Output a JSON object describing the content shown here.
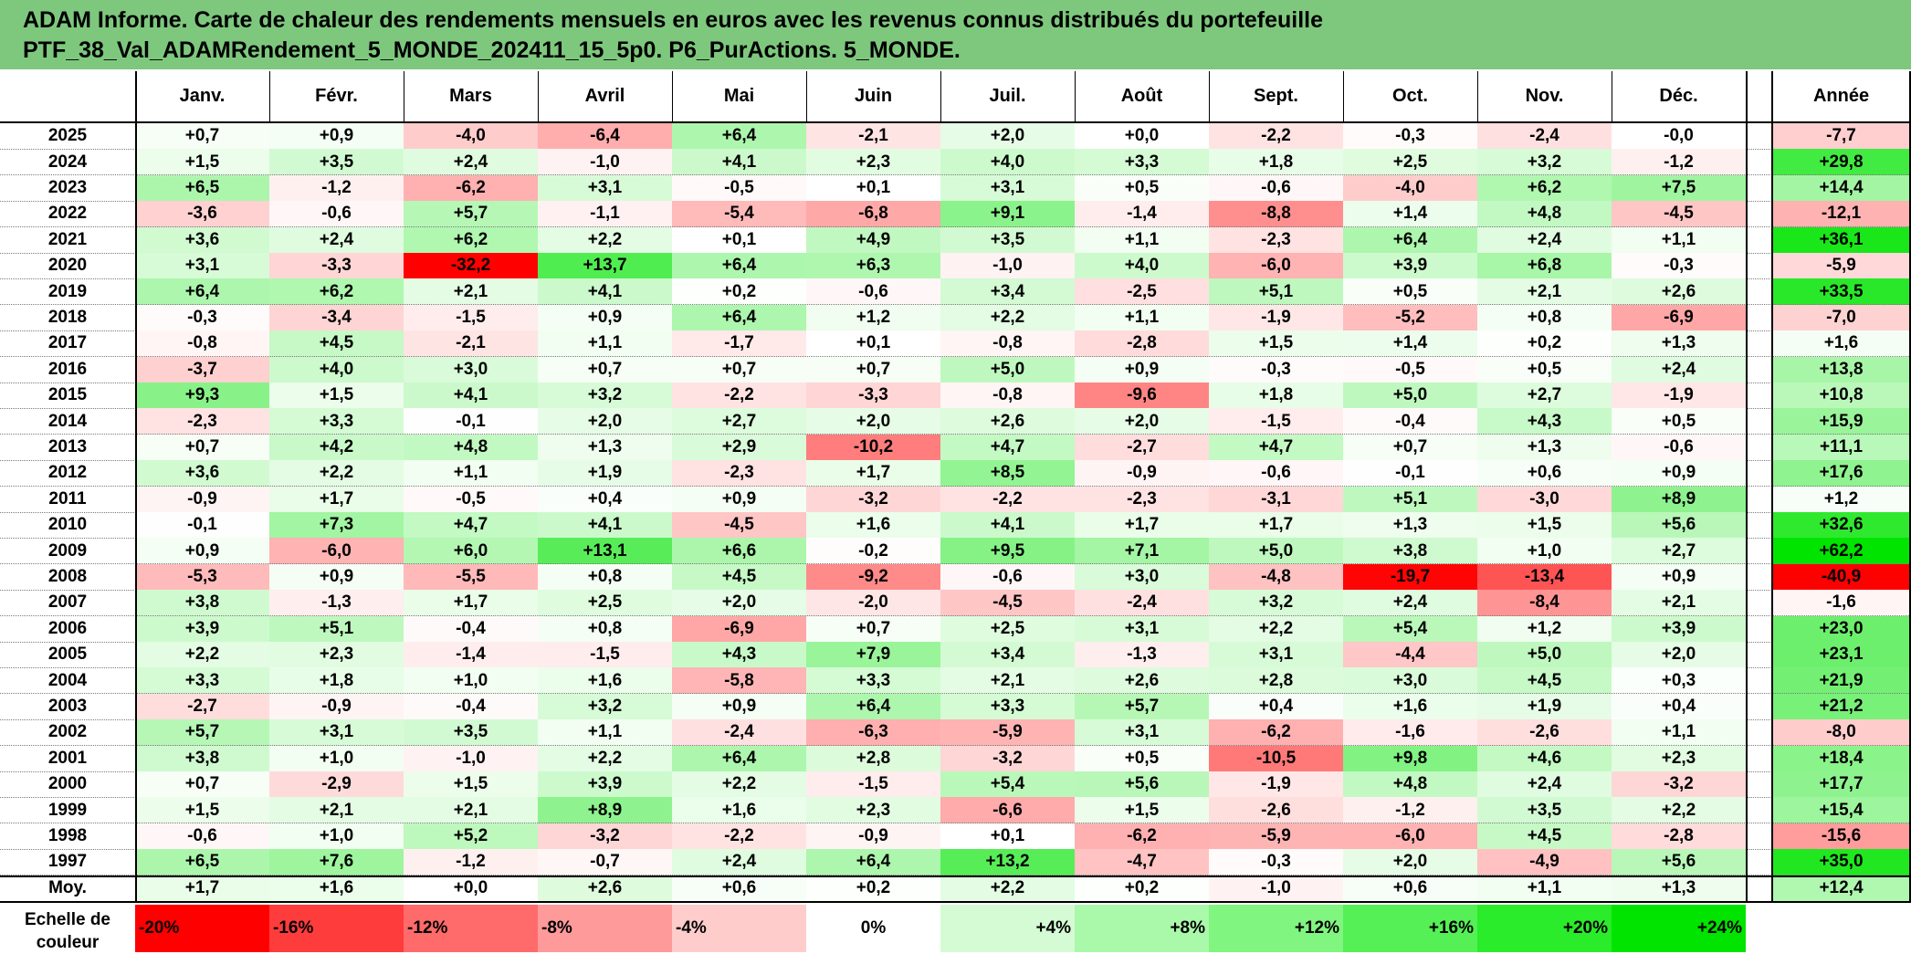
{
  "title": {
    "line1": "ADAM Informe. Carte de chaleur des rendements mensuels en euros avec les revenus connus distribués du portefeuille",
    "line2": "PTF_38_Val_ADAMRendement_5_MONDE_202411_15_5p0. P6_PurActions. 5_MONDE."
  },
  "chart_data": {
    "type": "heatmap",
    "columns": [
      "Janv.",
      "Févr.",
      "Mars",
      "Avril",
      "Mai",
      "Juin",
      "Juil.",
      "Août",
      "Sept.",
      "Oct.",
      "Nov.",
      "Déc."
    ],
    "year_column": "Année",
    "rows": [
      {
        "year": "2025",
        "values": [
          "+0,7",
          "+0,9",
          "-4,0",
          "-6,4",
          "+6,4",
          "-2,1",
          "+2,0",
          "+0,0",
          "-2,2",
          "-0,3",
          "-2,4",
          "-0,0"
        ],
        "annual": "-7,7"
      },
      {
        "year": "2024",
        "values": [
          "+1,5",
          "+3,5",
          "+2,4",
          "-1,0",
          "+4,1",
          "+2,3",
          "+4,0",
          "+3,3",
          "+1,8",
          "+2,5",
          "+3,2",
          "-1,2"
        ],
        "annual": "+29,8"
      },
      {
        "year": "2023",
        "values": [
          "+6,5",
          "-1,2",
          "-6,2",
          "+3,1",
          "-0,5",
          "+0,1",
          "+3,1",
          "+0,5",
          "-0,6",
          "-4,0",
          "+6,2",
          "+7,5"
        ],
        "annual": "+14,4"
      },
      {
        "year": "2022",
        "values": [
          "-3,6",
          "-0,6",
          "+5,7",
          "-1,1",
          "-5,4",
          "-6,8",
          "+9,1",
          "-1,4",
          "-8,8",
          "+1,4",
          "+4,8",
          "-4,5"
        ],
        "annual": "-12,1"
      },
      {
        "year": "2021",
        "values": [
          "+3,6",
          "+2,4",
          "+6,2",
          "+2,2",
          "+0,1",
          "+4,9",
          "+3,5",
          "+1,1",
          "-2,3",
          "+6,4",
          "+2,4",
          "+1,1"
        ],
        "annual": "+36,1"
      },
      {
        "year": "2020",
        "values": [
          "+3,1",
          "-3,3",
          "-32,2",
          "+13,7",
          "+6,4",
          "+6,3",
          "-1,0",
          "+4,0",
          "-6,0",
          "+3,9",
          "+6,8",
          "-0,3"
        ],
        "annual": "-5,9"
      },
      {
        "year": "2019",
        "values": [
          "+6,4",
          "+6,2",
          "+2,1",
          "+4,1",
          "+0,2",
          "-0,6",
          "+3,4",
          "-2,5",
          "+5,1",
          "+0,5",
          "+2,1",
          "+2,6"
        ],
        "annual": "+33,5"
      },
      {
        "year": "2018",
        "values": [
          "-0,3",
          "-3,4",
          "-1,5",
          "+0,9",
          "+6,4",
          "+1,2",
          "+2,2",
          "+1,1",
          "-1,9",
          "-5,2",
          "+0,8",
          "-6,9"
        ],
        "annual": "-7,0"
      },
      {
        "year": "2017",
        "values": [
          "-0,8",
          "+4,5",
          "-2,1",
          "+1,1",
          "-1,7",
          "+0,1",
          "-0,8",
          "-2,8",
          "+1,5",
          "+1,4",
          "+0,2",
          "+1,3"
        ],
        "annual": "+1,6"
      },
      {
        "year": "2016",
        "values": [
          "-3,7",
          "+4,0",
          "+3,0",
          "+0,7",
          "+0,7",
          "+0,7",
          "+5,0",
          "+0,9",
          "-0,3",
          "-0,5",
          "+0,5",
          "+2,4"
        ],
        "annual": "+13,8"
      },
      {
        "year": "2015",
        "values": [
          "+9,3",
          "+1,5",
          "+4,1",
          "+3,2",
          "-2,2",
          "-3,3",
          "-0,8",
          "-9,6",
          "+1,8",
          "+5,0",
          "+2,7",
          "-1,9"
        ],
        "annual": "+10,8"
      },
      {
        "year": "2014",
        "values": [
          "-2,3",
          "+3,3",
          "-0,1",
          "+2,0",
          "+2,7",
          "+2,0",
          "+2,6",
          "+2,0",
          "-1,5",
          "-0,4",
          "+4,3",
          "+0,5"
        ],
        "annual": "+15,9"
      },
      {
        "year": "2013",
        "values": [
          "+0,7",
          "+4,2",
          "+4,8",
          "+1,3",
          "+2,9",
          "-10,2",
          "+4,7",
          "-2,7",
          "+4,7",
          "+0,7",
          "+1,3",
          "-0,6"
        ],
        "annual": "+11,1"
      },
      {
        "year": "2012",
        "values": [
          "+3,6",
          "+2,2",
          "+1,1",
          "+1,9",
          "-2,3",
          "+1,7",
          "+8,5",
          "-0,9",
          "-0,6",
          "-0,1",
          "+0,6",
          "+0,9"
        ],
        "annual": "+17,6"
      },
      {
        "year": "2011",
        "values": [
          "-0,9",
          "+1,7",
          "-0,5",
          "+0,4",
          "+0,9",
          "-3,2",
          "-2,2",
          "-2,3",
          "-3,1",
          "+5,1",
          "-3,0",
          "+8,9"
        ],
        "annual": "+1,2"
      },
      {
        "year": "2010",
        "values": [
          "-0,1",
          "+7,3",
          "+4,7",
          "+4,1",
          "-4,5",
          "+1,6",
          "+4,1",
          "+1,7",
          "+1,7",
          "+1,3",
          "+1,5",
          "+5,6"
        ],
        "annual": "+32,6"
      },
      {
        "year": "2009",
        "values": [
          "+0,9",
          "-6,0",
          "+6,0",
          "+13,1",
          "+6,6",
          "-0,2",
          "+9,5",
          "+7,1",
          "+5,0",
          "+3,8",
          "+1,0",
          "+2,7"
        ],
        "annual": "+62,2"
      },
      {
        "year": "2008",
        "values": [
          "-5,3",
          "+0,9",
          "-5,5",
          "+0,8",
          "+4,5",
          "-9,2",
          "-0,6",
          "+3,0",
          "-4,8",
          "-19,7",
          "-13,4",
          "+0,9"
        ],
        "annual": "-40,9"
      },
      {
        "year": "2007",
        "values": [
          "+3,8",
          "-1,3",
          "+1,7",
          "+2,5",
          "+2,0",
          "-2,0",
          "-4,5",
          "-2,4",
          "+3,2",
          "+2,4",
          "-8,4",
          "+2,1"
        ],
        "annual": "-1,6"
      },
      {
        "year": "2006",
        "values": [
          "+3,9",
          "+5,1",
          "-0,4",
          "+0,8",
          "-6,9",
          "+0,7",
          "+2,5",
          "+3,1",
          "+2,2",
          "+5,4",
          "+1,2",
          "+3,9"
        ],
        "annual": "+23,0"
      },
      {
        "year": "2005",
        "values": [
          "+2,2",
          "+2,3",
          "-1,4",
          "-1,5",
          "+4,3",
          "+7,9",
          "+3,4",
          "-1,3",
          "+3,1",
          "-4,4",
          "+5,0",
          "+2,0"
        ],
        "annual": "+23,1"
      },
      {
        "year": "2004",
        "values": [
          "+3,3",
          "+1,8",
          "+1,0",
          "+1,6",
          "-5,8",
          "+3,3",
          "+2,1",
          "+2,6",
          "+2,8",
          "+3,0",
          "+4,5",
          "+0,3"
        ],
        "annual": "+21,9"
      },
      {
        "year": "2003",
        "values": [
          "-2,7",
          "-0,9",
          "-0,4",
          "+3,2",
          "+0,9",
          "+6,4",
          "+3,3",
          "+5,7",
          "+0,4",
          "+1,6",
          "+1,9",
          "+0,4"
        ],
        "annual": "+21,2"
      },
      {
        "year": "2002",
        "values": [
          "+5,7",
          "+3,1",
          "+3,5",
          "+1,1",
          "-2,4",
          "-6,3",
          "-5,9",
          "+3,1",
          "-6,2",
          "-1,6",
          "-2,6",
          "+1,1"
        ],
        "annual": "-8,0"
      },
      {
        "year": "2001",
        "values": [
          "+3,8",
          "+1,0",
          "-1,0",
          "+2,2",
          "+6,4",
          "+2,8",
          "-3,2",
          "+0,5",
          "-10,5",
          "+9,8",
          "+4,6",
          "+2,3"
        ],
        "annual": "+18,4"
      },
      {
        "year": "2000",
        "values": [
          "+0,7",
          "-2,9",
          "+1,5",
          "+3,9",
          "+2,2",
          "-1,5",
          "+5,4",
          "+5,6",
          "-1,9",
          "+4,8",
          "+2,4",
          "-3,2"
        ],
        "annual": "+17,7"
      },
      {
        "year": "1999",
        "values": [
          "+1,5",
          "+2,1",
          "+2,1",
          "+8,9",
          "+1,6",
          "+2,3",
          "-6,6",
          "+1,5",
          "-2,6",
          "-1,2",
          "+3,5",
          "+2,2"
        ],
        "annual": "+15,4"
      },
      {
        "year": "1998",
        "values": [
          "-0,6",
          "+1,0",
          "+5,2",
          "-3,2",
          "-2,2",
          "-0,9",
          "+0,1",
          "-6,2",
          "-5,9",
          "-6,0",
          "+4,5",
          "-2,8"
        ],
        "annual": "-15,6"
      },
      {
        "year": "1997",
        "values": [
          "+6,5",
          "+7,6",
          "-1,2",
          "-0,7",
          "+2,4",
          "+6,4",
          "+13,2",
          "-4,7",
          "-0,3",
          "+2,0",
          "-4,9",
          "+5,6"
        ],
        "annual": "+35,0"
      }
    ],
    "average": {
      "label": "Moy.",
      "values": [
        "+1,7",
        "+1,6",
        "+0,0",
        "+2,6",
        "+0,6",
        "+0,2",
        "+2,2",
        "+0,2",
        "-1,0",
        "+0,6",
        "+1,1",
        "+1,3"
      ],
      "annual": "+12,4"
    },
    "scale": {
      "label_line1": "Echelle de",
      "label_line2": "couleur",
      "steps": [
        {
          "label": "-20%",
          "color": "#ff0000",
          "align": "left"
        },
        {
          "label": "-16%",
          "color": "#ff3c3c",
          "align": "left"
        },
        {
          "label": "-12%",
          "color": "#ff6a6a",
          "align": "left"
        },
        {
          "label": "-8%",
          "color": "#ff9a9a",
          "align": "left"
        },
        {
          "label": "-4%",
          "color": "#ffcccc",
          "align": "left"
        },
        {
          "label": "0%",
          "color": "#ffffff",
          "align": "center"
        },
        {
          "label": "+4%",
          "color": "#d4fbd4",
          "align": "right"
        },
        {
          "label": "+8%",
          "color": "#aaf8aa",
          "align": "right"
        },
        {
          "label": "+12%",
          "color": "#80f580",
          "align": "right"
        },
        {
          "label": "+16%",
          "color": "#55f055",
          "align": "right"
        },
        {
          "label": "+20%",
          "color": "#2aec2a",
          "align": "right"
        },
        {
          "label": "+24%",
          "color": "#00e400",
          "align": "right"
        }
      ]
    }
  },
  "colors": {
    "title_bg": "#7ec87e"
  }
}
